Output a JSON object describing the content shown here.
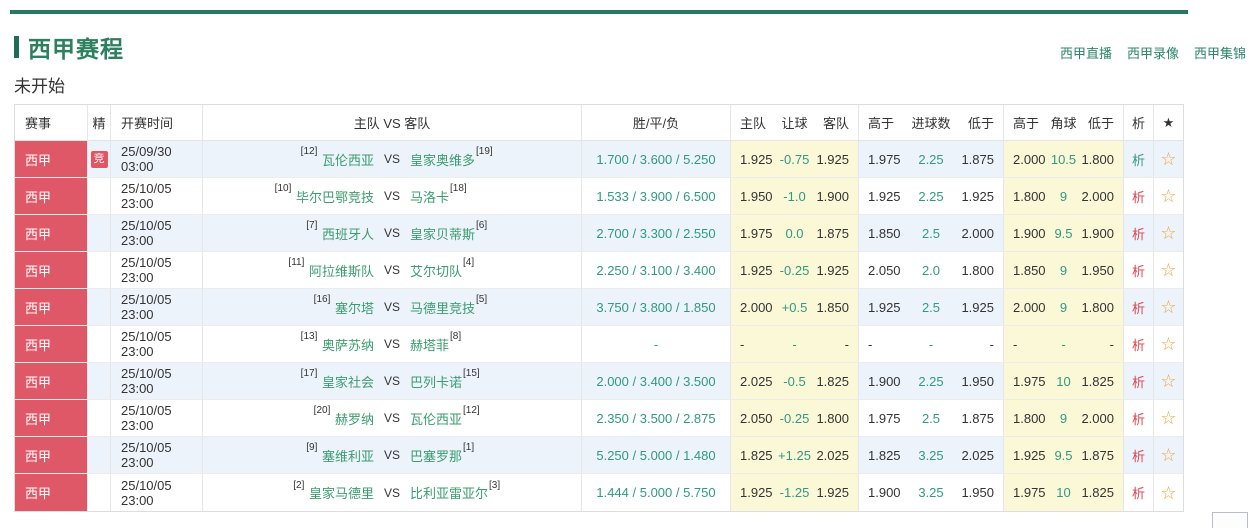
{
  "page": {
    "title": "西甲赛程",
    "status_heading": "未开始",
    "links": {
      "live": "西甲直播",
      "replay": "西甲录像",
      "highlights": "西甲集锦"
    }
  },
  "colors": {
    "accent_green": "#27785f",
    "link_green": "#2c8566",
    "team_green": "#3b9c6e",
    "odds_teal": "#2f9a80",
    "league_red": "#df5867",
    "analysis_red": "#d8444e",
    "row_blue": "#edf3fb",
    "odds_yellow": "#fbf8d8",
    "star_gold": "#f2ae2f"
  },
  "header": {
    "league": "赛事",
    "pick": "精",
    "time": "开赛时间",
    "teams": "主队  VS  客队",
    "result": "胜/平/负",
    "handicap": {
      "home": "主队",
      "line": "让球",
      "away": "客队"
    },
    "goals": {
      "over": "高于",
      "line": "进球数",
      "under": "低于"
    },
    "corners": {
      "over": "高于",
      "line": "角球",
      "under": "低于"
    },
    "analysis": "析",
    "star": "★"
  },
  "misc": {
    "vs_label": "VS",
    "jing_badge": "竞",
    "star_outline": "☆"
  },
  "rows": [
    {
      "league": "西甲",
      "jing": true,
      "time": "25/09/30 03:00",
      "home_rank": "[12]",
      "home": "瓦伦西亚",
      "away": "皇家奥维多",
      "away_rank": "[19]",
      "odds": "1.700 / 3.600 / 5.250",
      "h_home": "1.925",
      "h_line": "-0.75",
      "h_away": "1.925",
      "g_over": "1.975",
      "g_line": "2.25",
      "g_under": "1.875",
      "c_over": "2.000",
      "c_line": "10.5",
      "c_under": "1.800",
      "analysis": "析",
      "analysis_state": "visited"
    },
    {
      "league": "西甲",
      "jing": false,
      "time": "25/10/05 23:00",
      "home_rank": "[10]",
      "home": "毕尔巴鄂竞技",
      "away": "马洛卡",
      "away_rank": "[18]",
      "odds": "1.533 / 3.900 / 6.500",
      "h_home": "1.950",
      "h_line": "-1.0",
      "h_away": "1.900",
      "g_over": "1.925",
      "g_line": "2.25",
      "g_under": "1.925",
      "c_over": "1.800",
      "c_line": "9",
      "c_under": "2.000",
      "analysis": "析",
      "analysis_state": "normal"
    },
    {
      "league": "西甲",
      "jing": false,
      "time": "25/10/05 23:00",
      "home_rank": "[7]",
      "home": "西班牙人",
      "away": "皇家贝蒂斯",
      "away_rank": "[6]",
      "odds": "2.700 / 3.300 / 2.550",
      "h_home": "1.975",
      "h_line": "0.0",
      "h_away": "1.875",
      "g_over": "1.850",
      "g_line": "2.5",
      "g_under": "2.000",
      "c_over": "1.900",
      "c_line": "9.5",
      "c_under": "1.900",
      "analysis": "析",
      "analysis_state": "normal"
    },
    {
      "league": "西甲",
      "jing": false,
      "time": "25/10/05 23:00",
      "home_rank": "[11]",
      "home": "阿拉维斯队",
      "away": "艾尔切队",
      "away_rank": "[4]",
      "odds": "2.250 / 3.100 / 3.400",
      "h_home": "1.925",
      "h_line": "-0.25",
      "h_away": "1.925",
      "g_over": "2.050",
      "g_line": "2.0",
      "g_under": "1.800",
      "c_over": "1.850",
      "c_line": "9",
      "c_under": "1.950",
      "analysis": "析",
      "analysis_state": "normal"
    },
    {
      "league": "西甲",
      "jing": false,
      "time": "25/10/05 23:00",
      "home_rank": "[16]",
      "home": "塞尔塔",
      "away": "马德里竞技",
      "away_rank": "[5]",
      "odds": "3.750 / 3.800 / 1.850",
      "h_home": "2.000",
      "h_line": "+0.5",
      "h_away": "1.850",
      "g_over": "1.925",
      "g_line": "2.5",
      "g_under": "1.925",
      "c_over": "2.000",
      "c_line": "9",
      "c_under": "1.800",
      "analysis": "析",
      "analysis_state": "normal"
    },
    {
      "league": "西甲",
      "jing": false,
      "time": "25/10/05 23:00",
      "home_rank": "[13]",
      "home": "奥萨苏纳",
      "away": "赫塔菲",
      "away_rank": "[8]",
      "odds": "-",
      "h_home": "-",
      "h_line": "-",
      "h_away": "-",
      "g_over": "-",
      "g_line": "-",
      "g_under": "-",
      "c_over": "-",
      "c_line": "-",
      "c_under": "-",
      "analysis": "析",
      "analysis_state": "normal"
    },
    {
      "league": "西甲",
      "jing": false,
      "time": "25/10/05 23:00",
      "home_rank": "[17]",
      "home": "皇家社会",
      "away": "巴列卡诺",
      "away_rank": "[15]",
      "odds": "2.000 / 3.400 / 3.500",
      "h_home": "2.025",
      "h_line": "-0.5",
      "h_away": "1.825",
      "g_over": "1.900",
      "g_line": "2.25",
      "g_under": "1.950",
      "c_over": "1.975",
      "c_line": "10",
      "c_under": "1.825",
      "analysis": "析",
      "analysis_state": "normal"
    },
    {
      "league": "西甲",
      "jing": false,
      "time": "25/10/05 23:00",
      "home_rank": "[20]",
      "home": "赫罗纳",
      "away": "瓦伦西亚",
      "away_rank": "[12]",
      "odds": "2.350 / 3.500 / 2.875",
      "h_home": "2.050",
      "h_line": "-0.25",
      "h_away": "1.800",
      "g_over": "1.975",
      "g_line": "2.5",
      "g_under": "1.875",
      "c_over": "1.800",
      "c_line": "9",
      "c_under": "2.000",
      "analysis": "析",
      "analysis_state": "normal"
    },
    {
      "league": "西甲",
      "jing": false,
      "time": "25/10/05 23:00",
      "home_rank": "[9]",
      "home": "塞维利亚",
      "away": "巴塞罗那",
      "away_rank": "[1]",
      "odds": "5.250 / 5.000 / 1.480",
      "h_home": "1.825",
      "h_line": "+1.25",
      "h_away": "2.025",
      "g_over": "1.825",
      "g_line": "3.25",
      "g_under": "2.025",
      "c_over": "1.925",
      "c_line": "9.5",
      "c_under": "1.875",
      "analysis": "析",
      "analysis_state": "normal"
    },
    {
      "league": "西甲",
      "jing": false,
      "time": "25/10/05 23:00",
      "home_rank": "[2]",
      "home": "皇家马德里",
      "away": "比利亚雷亚尔",
      "away_rank": "[3]",
      "odds": "1.444 / 5.000 / 5.750",
      "h_home": "1.925",
      "h_line": "-1.25",
      "h_away": "1.925",
      "g_over": "1.900",
      "g_line": "3.25",
      "g_under": "1.950",
      "c_over": "1.975",
      "c_line": "10",
      "c_under": "1.825",
      "analysis": "析",
      "analysis_state": "normal"
    }
  ]
}
